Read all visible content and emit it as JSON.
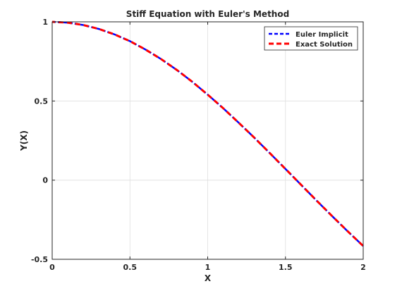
{
  "chart_data": {
    "type": "line",
    "title": "Stiff Equation with Euler's Method",
    "xlabel": "X",
    "ylabel": "Y(X)",
    "xlim": [
      0,
      2
    ],
    "ylim": [
      -0.5,
      1
    ],
    "xticks": [
      0,
      0.5,
      1,
      1.5,
      2
    ],
    "xtick_labels": [
      "0",
      "0.5",
      "1",
      "1.5",
      "2"
    ],
    "yticks": [
      -0.5,
      0,
      0.5,
      1
    ],
    "ytick_labels": [
      "-0.5",
      "0",
      "0.5",
      "1"
    ],
    "grid": true,
    "legend_position": "top-right",
    "series": [
      {
        "name": "Euler Implicit",
        "color": "#0000ff",
        "line_style": "dashed",
        "x": [
          0,
          0.1,
          0.2,
          0.3,
          0.4,
          0.5,
          0.6,
          0.7,
          0.8,
          0.9,
          1.0,
          1.1,
          1.2,
          1.3,
          1.4,
          1.5,
          1.6,
          1.7,
          1.8,
          1.9,
          2.0
        ],
        "y": [
          1.0,
          0.995,
          0.98,
          0.955,
          0.921,
          0.878,
          0.825,
          0.765,
          0.697,
          0.622,
          0.54,
          0.454,
          0.362,
          0.268,
          0.17,
          0.071,
          -0.029,
          -0.129,
          -0.227,
          -0.323,
          -0.416
        ]
      },
      {
        "name": "Exact Solution",
        "color": "#ff0000",
        "line_style": "dashed",
        "x": [
          0,
          0.1,
          0.2,
          0.3,
          0.4,
          0.5,
          0.6,
          0.7,
          0.8,
          0.9,
          1.0,
          1.1,
          1.2,
          1.3,
          1.4,
          1.5,
          1.6,
          1.7,
          1.8,
          1.9,
          2.0
        ],
        "y": [
          1.0,
          0.995,
          0.98,
          0.955,
          0.921,
          0.878,
          0.825,
          0.765,
          0.697,
          0.622,
          0.54,
          0.454,
          0.362,
          0.268,
          0.17,
          0.071,
          -0.029,
          -0.129,
          -0.227,
          -0.323,
          -0.416
        ]
      }
    ]
  }
}
